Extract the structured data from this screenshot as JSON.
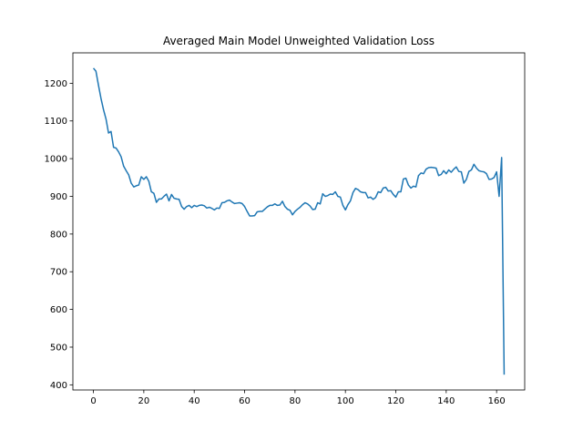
{
  "chart_data": {
    "type": "line",
    "title": "Averaged Main Model Unweighted Validation Loss",
    "x": [
      0,
      1,
      2,
      3,
      4,
      5,
      6,
      7,
      8,
      9,
      10,
      11,
      12,
      13,
      14,
      15,
      16,
      17,
      18,
      19,
      20,
      21,
      22,
      23,
      24,
      25,
      26,
      27,
      28,
      29,
      30,
      31,
      32,
      33,
      34,
      35,
      36,
      37,
      38,
      39,
      40,
      41,
      42,
      43,
      44,
      45,
      46,
      47,
      48,
      49,
      50,
      51,
      52,
      53,
      54,
      55,
      56,
      57,
      58,
      59,
      60,
      61,
      62,
      63,
      64,
      65,
      66,
      67,
      68,
      69,
      70,
      71,
      72,
      73,
      74,
      75,
      76,
      77,
      78,
      79,
      80,
      81,
      82,
      83,
      84,
      85,
      86,
      87,
      88,
      89,
      90,
      91,
      92,
      93,
      94,
      95,
      96,
      97,
      98,
      99,
      100,
      101,
      102,
      103,
      104,
      105,
      106,
      107,
      108,
      109,
      110,
      111,
      112,
      113,
      114,
      115,
      116,
      117,
      118,
      119,
      120,
      121,
      122,
      123,
      124,
      125,
      126,
      127,
      128,
      129,
      130,
      131,
      132,
      133,
      134,
      135,
      136,
      137,
      138,
      139,
      140,
      141,
      142,
      143,
      144,
      145,
      146,
      147,
      148,
      149,
      150,
      151,
      152,
      153,
      154,
      155,
      156,
      157,
      158,
      159,
      160,
      161,
      162,
      163
    ],
    "series": [
      {
        "color": "#1f77b4",
        "values": [
          1240,
          1232,
          1195,
          1160,
          1130,
          1105,
          1068,
          1072,
          1030,
          1028,
          1018,
          1005,
          980,
          968,
          957,
          935,
          925,
          928,
          930,
          952,
          945,
          952,
          940,
          912,
          908,
          884,
          893,
          893,
          900,
          906,
          888,
          905,
          895,
          893,
          892,
          873,
          866,
          873,
          876,
          870,
          876,
          873,
          876,
          877,
          875,
          869,
          871,
          868,
          864,
          869,
          868,
          883,
          884,
          888,
          890,
          885,
          881,
          882,
          883,
          881,
          873,
          860,
          848,
          848,
          849,
          859,
          860,
          860,
          866,
          872,
          876,
          876,
          880,
          876,
          877,
          887,
          873,
          866,
          863,
          851,
          860,
          866,
          871,
          878,
          883,
          880,
          874,
          865,
          866,
          883,
          880,
          907,
          900,
          902,
          906,
          905,
          912,
          900,
          898,
          876,
          864,
          878,
          888,
          910,
          921,
          918,
          912,
          910,
          910,
          896,
          898,
          892,
          897,
          912,
          910,
          922,
          924,
          914,
          915,
          905,
          898,
          912,
          912,
          946,
          948,
          930,
          922,
          927,
          925,
          955,
          962,
          960,
          972,
          976,
          977,
          976,
          975,
          955,
          958,
          968,
          960,
          970,
          964,
          972,
          978,
          966,
          965,
          935,
          945,
          966,
          970,
          985,
          975,
          968,
          966,
          965,
          960,
          945,
          946,
          950,
          965,
          900,
          1003,
          427
        ]
      }
    ],
    "xlim": [
      -8.15,
      171.15
    ],
    "ylim": [
      386.35,
      1280.65
    ],
    "xticks": [
      0,
      20,
      40,
      60,
      80,
      100,
      120,
      140,
      160
    ],
    "yticks": [
      400,
      500,
      600,
      700,
      800,
      900,
      1000,
      1100,
      1200
    ]
  }
}
